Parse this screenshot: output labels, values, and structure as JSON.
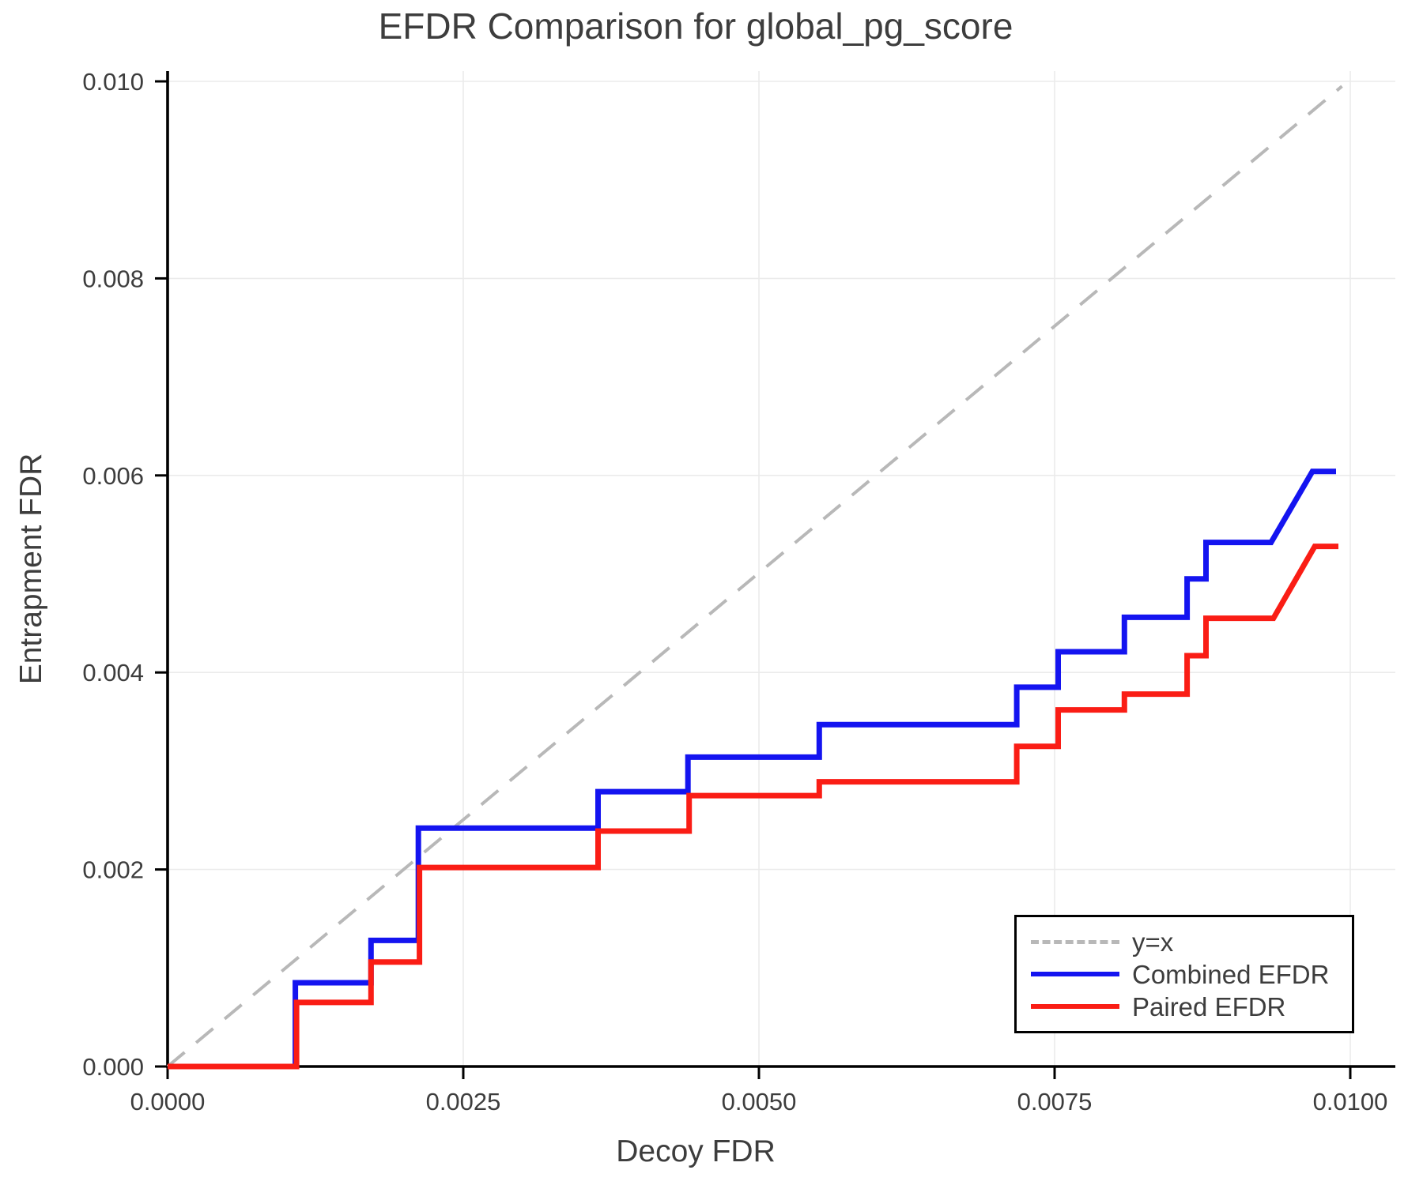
{
  "chart_data": {
    "type": "line",
    "title": "EFDR Comparison for global_pg_score",
    "xlabel": "Decoy FDR",
    "ylabel": "Entrapment FDR",
    "xlim": [
      0,
      0.0104
    ],
    "ylim": [
      0,
      0.0101
    ],
    "grid": true,
    "legend_position": "lower right",
    "x_ticks": {
      "values": [
        0.0,
        0.0025,
        0.005,
        0.0075,
        0.01
      ],
      "labels": [
        "0.0000",
        "0.0025",
        "0.0050",
        "0.0075",
        "0.0100"
      ]
    },
    "y_ticks": {
      "values": [
        0.0,
        0.002,
        0.004,
        0.006,
        0.008,
        0.01
      ],
      "labels": [
        "0.000",
        "0.002",
        "0.004",
        "0.006",
        "0.008",
        "0.010"
      ]
    },
    "series": [
      {
        "name": "y=x",
        "color": "#b8b8b8",
        "style": "dashed",
        "width": 4,
        "points": [
          [
            0.0,
            0.0
          ],
          [
            0.00993,
            0.00995
          ]
        ]
      },
      {
        "name": "Combined EFDR",
        "color": "#1414f0",
        "style": "solid",
        "width": 7,
        "points": [
          [
            0.0,
            0.0
          ],
          [
            0.00108,
            0.0
          ],
          [
            0.00108,
            0.00085
          ],
          [
            0.00172,
            0.00085
          ],
          [
            0.00172,
            0.00128
          ],
          [
            0.00212,
            0.00128
          ],
          [
            0.00212,
            0.00242
          ],
          [
            0.00364,
            0.00242
          ],
          [
            0.00364,
            0.00279
          ],
          [
            0.0044,
            0.00279
          ],
          [
            0.0044,
            0.00314
          ],
          [
            0.00551,
            0.00314
          ],
          [
            0.00551,
            0.00347
          ],
          [
            0.00718,
            0.00347
          ],
          [
            0.00718,
            0.00385
          ],
          [
            0.00753,
            0.00385
          ],
          [
            0.00753,
            0.00421
          ],
          [
            0.00809,
            0.00421
          ],
          [
            0.00809,
            0.00456
          ],
          [
            0.00862,
            0.00456
          ],
          [
            0.00862,
            0.00495
          ],
          [
            0.00878,
            0.00495
          ],
          [
            0.00878,
            0.00532
          ],
          [
            0.00933,
            0.00532
          ],
          [
            0.00968,
            0.00604
          ],
          [
            0.00988,
            0.00604
          ]
        ]
      },
      {
        "name": "Paired EFDR",
        "color": "#fa1d15",
        "style": "solid",
        "width": 7,
        "points": [
          [
            0.0,
            0.0
          ],
          [
            0.00109,
            0.0
          ],
          [
            0.00109,
            0.00065
          ],
          [
            0.00172,
            0.00065
          ],
          [
            0.00172,
            0.00106
          ],
          [
            0.00213,
            0.00106
          ],
          [
            0.00213,
            0.00202
          ],
          [
            0.00364,
            0.00202
          ],
          [
            0.00364,
            0.00239
          ],
          [
            0.00441,
            0.00239
          ],
          [
            0.00441,
            0.00275
          ],
          [
            0.00551,
            0.00275
          ],
          [
            0.00551,
            0.00289
          ],
          [
            0.00718,
            0.00289
          ],
          [
            0.00718,
            0.00325
          ],
          [
            0.00753,
            0.00325
          ],
          [
            0.00753,
            0.00362
          ],
          [
            0.00809,
            0.00362
          ],
          [
            0.00809,
            0.00378
          ],
          [
            0.00862,
            0.00378
          ],
          [
            0.00862,
            0.00417
          ],
          [
            0.00878,
            0.00417
          ],
          [
            0.00878,
            0.00455
          ],
          [
            0.00935,
            0.00455
          ],
          [
            0.0097,
            0.00528
          ],
          [
            0.0099,
            0.00528
          ]
        ]
      }
    ],
    "colors": {
      "text": "#3d3d3d",
      "grid": "#ebebeb",
      "spine": "#000000"
    }
  }
}
